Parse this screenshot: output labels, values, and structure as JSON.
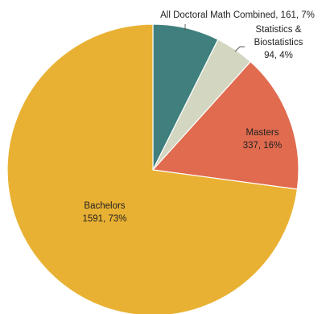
{
  "chart_data": {
    "type": "pie",
    "title": "",
    "slices": [
      {
        "name": "All Doctoral Math Combined",
        "value": 161,
        "percent_label": "7%",
        "label_lines": [
          "All Doctoral Math Combined, 161, 7%"
        ],
        "color": "#3f7f7d"
      },
      {
        "name": "Statistics & Biostatistics",
        "value": 94,
        "percent_label": "4%",
        "label_lines": [
          "Statistics &",
          "Biostatistics",
          "94, 4%"
        ],
        "color": "#d3d6c1"
      },
      {
        "name": "Masters",
        "value": 337,
        "percent_label": "16%",
        "label_lines": [
          "Masters",
          "337, 16%"
        ],
        "color": "#e06b4f"
      },
      {
        "name": "Bachelors",
        "value": 1591,
        "percent_label": "73%",
        "label_lines": [
          "Bachelors",
          "1591, 73%"
        ],
        "color": "#e9b133"
      }
    ],
    "start_angle_deg": 0,
    "direction": "clockwise",
    "legend": "none"
  }
}
